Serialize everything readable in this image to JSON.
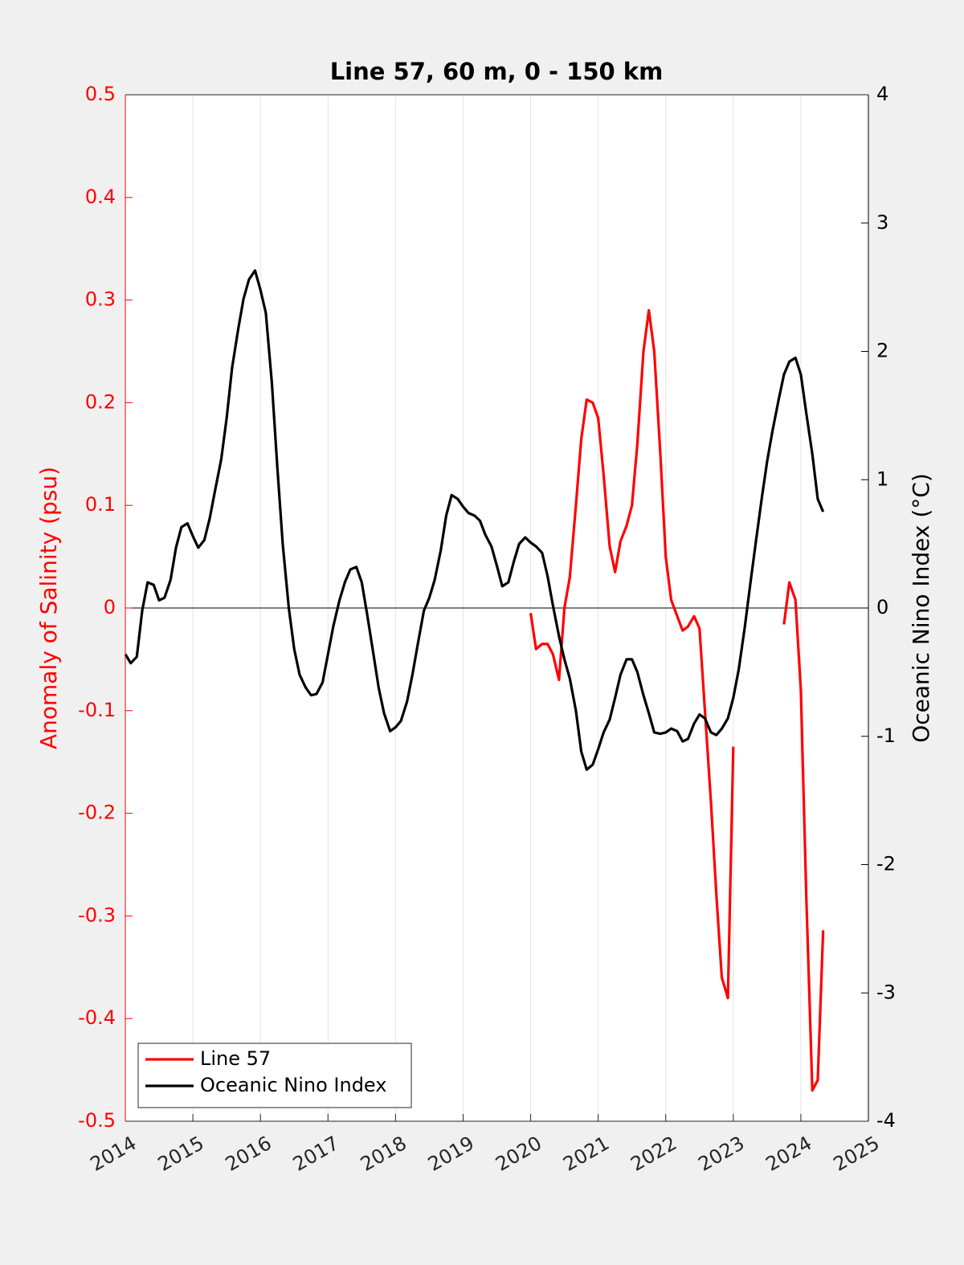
{
  "chart_data": {
    "type": "line",
    "title": "Line 57, 60 m, 0 - 150 km",
    "y_label": "Anomaly of Salinity (psu)",
    "y2_label": "Oceanic Nino Index (°C)",
    "xlim": [
      2014,
      2025
    ],
    "xticks": [
      2014,
      2015,
      2016,
      2017,
      2018,
      2019,
      2020,
      2021,
      2022,
      2023,
      2024,
      2025
    ],
    "ylim": [
      -0.5,
      0.5
    ],
    "yticks": [
      -0.5,
      -0.4,
      -0.3,
      -0.2,
      -0.1,
      0,
      0.1,
      0.2,
      0.3,
      0.4,
      0.5
    ],
    "y2lim": [
      -4,
      4
    ],
    "y2ticks": [
      -4,
      -3,
      -2,
      -1,
      0,
      1,
      2,
      3,
      4
    ],
    "y_color": "#ff0000",
    "y2_color": "#000000",
    "x_grid": true,
    "reference_line": 0,
    "legend": "lower left",
    "x": [
      2014,
      2014.08,
      2014.17,
      2014.25,
      2014.33,
      2014.42,
      2014.5,
      2014.58,
      2014.67,
      2014.75,
      2014.83,
      2014.92,
      2015,
      2015.08,
      2015.17,
      2015.25,
      2015.33,
      2015.42,
      2015.5,
      2015.58,
      2015.67,
      2015.75,
      2015.83,
      2015.92,
      2016,
      2016.08,
      2016.17,
      2016.25,
      2016.33,
      2016.42,
      2016.5,
      2016.58,
      2016.67,
      2016.75,
      2016.83,
      2016.92,
      2017,
      2017.08,
      2017.17,
      2017.25,
      2017.33,
      2017.42,
      2017.5,
      2017.58,
      2017.67,
      2017.75,
      2017.83,
      2017.92,
      2018,
      2018.08,
      2018.17,
      2018.25,
      2018.33,
      2018.42,
      2018.5,
      2018.58,
      2018.67,
      2018.75,
      2018.83,
      2018.92,
      2019,
      2019.08,
      2019.17,
      2019.25,
      2019.33,
      2019.42,
      2019.5,
      2019.58,
      2019.67,
      2019.75,
      2019.83,
      2019.92,
      2020,
      2020.08,
      2020.17,
      2020.25,
      2020.33,
      2020.42,
      2020.5,
      2020.58,
      2020.67,
      2020.75,
      2020.83,
      2020.92,
      2021,
      2021.08,
      2021.17,
      2021.25,
      2021.33,
      2021.42,
      2021.5,
      2021.58,
      2021.67,
      2021.75,
      2021.83,
      2021.92,
      2022,
      2022.08,
      2022.17,
      2022.25,
      2022.33,
      2022.42,
      2022.5,
      2022.58,
      2022.67,
      2022.75,
      2022.83,
      2022.92,
      2023,
      2023.08,
      2023.17,
      2023.25,
      2023.33,
      2023.42,
      2023.5,
      2023.58,
      2023.67,
      2023.75,
      2023.83,
      2023.92,
      2024,
      2024.08,
      2024.17,
      2024.25,
      2024.33
    ],
    "series": [
      {
        "name": "Line 57",
        "color": "#ff0000",
        "axis": "y",
        "values": [
          null,
          null,
          null,
          null,
          null,
          null,
          null,
          null,
          null,
          null,
          null,
          null,
          null,
          null,
          null,
          null,
          null,
          null,
          null,
          null,
          null,
          null,
          null,
          null,
          null,
          null,
          null,
          null,
          null,
          null,
          null,
          null,
          null,
          null,
          null,
          null,
          null,
          null,
          null,
          null,
          null,
          null,
          null,
          null,
          null,
          null,
          null,
          null,
          null,
          null,
          null,
          null,
          null,
          null,
          null,
          null,
          null,
          null,
          null,
          null,
          null,
          null,
          null,
          null,
          null,
          null,
          null,
          null,
          null,
          null,
          null,
          null,
          -0.005,
          -0.04,
          -0.035,
          -0.035,
          -0.045,
          -0.07,
          0,
          0.03,
          0.1,
          0.165,
          0.203,
          0.2,
          0.185,
          0.13,
          0.06,
          0.035,
          0.065,
          0.08,
          0.1,
          0.16,
          0.25,
          0.29,
          0.25,
          0.15,
          0.05,
          0.008,
          -0.008,
          -0.022,
          -0.018,
          -0.008,
          -0.02,
          -0.1,
          -0.19,
          -0.28,
          -0.36,
          -0.38,
          -0.135,
          null,
          null,
          null,
          null,
          null,
          null,
          null,
          null,
          -0.016,
          0.025,
          0.008,
          -0.08,
          -0.28,
          -0.47,
          -0.46,
          -0.314
        ]
      },
      {
        "name": "Oceanic Nino Index",
        "color": "#000000",
        "axis": "y2",
        "values": [
          -0.36,
          -0.43,
          -0.38,
          -0.02,
          0.2,
          0.18,
          0.06,
          0.08,
          0.22,
          0.47,
          0.63,
          0.66,
          0.56,
          0.47,
          0.53,
          0.7,
          0.92,
          1.16,
          1.48,
          1.87,
          2.17,
          2.41,
          2.56,
          2.63,
          2.48,
          2.3,
          1.75,
          1.1,
          0.5,
          0,
          -0.32,
          -0.52,
          -0.62,
          -0.68,
          -0.67,
          -0.58,
          -0.36,
          -0.14,
          0.06,
          0.2,
          0.3,
          0.32,
          0.2,
          -0.05,
          -0.35,
          -0.62,
          -0.82,
          -0.96,
          -0.93,
          -0.88,
          -0.73,
          -0.52,
          -0.28,
          -0.02,
          0.08,
          0.22,
          0.45,
          0.72,
          0.88,
          0.85,
          0.79,
          0.74,
          0.72,
          0.68,
          0.57,
          0.48,
          0.33,
          0.17,
          0.2,
          0.36,
          0.5,
          0.55,
          0.51,
          0.48,
          0.43,
          0.25,
          0.02,
          -0.22,
          -0.4,
          -0.55,
          -0.8,
          -1.12,
          -1.26,
          -1.22,
          -1.1,
          -0.97,
          -0.87,
          -0.7,
          -0.52,
          -0.4,
          -0.4,
          -0.5,
          -0.68,
          -0.82,
          -0.97,
          -0.98,
          -0.97,
          -0.94,
          -0.96,
          -1.04,
          -1.02,
          -0.9,
          -0.83,
          -0.86,
          -0.97,
          -0.99,
          -0.94,
          -0.86,
          -0.7,
          -0.48,
          -0.15,
          0.18,
          0.5,
          0.85,
          1.14,
          1.38,
          1.62,
          1.82,
          1.92,
          1.95,
          1.82,
          1.52,
          1.2,
          0.85,
          0.75
        ]
      }
    ]
  }
}
